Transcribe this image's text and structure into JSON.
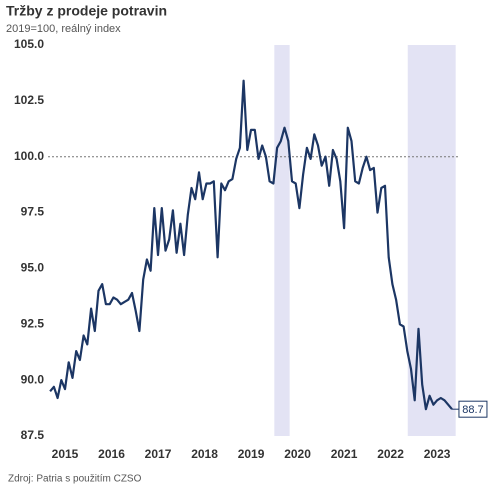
{
  "chart_data": {
    "type": "line",
    "title": "Tržby z prodeje potravin",
    "subtitle": "2019=100, reálný index",
    "source": "Zdroj: Patria s použitím CZSO",
    "x": [
      2015.18,
      2015.26,
      2015.34,
      2015.42,
      2015.5,
      2015.58,
      2015.66,
      2015.74,
      2015.82,
      2015.9,
      2015.98,
      2016.06,
      2016.14,
      2016.22,
      2016.3,
      2016.38,
      2016.46,
      2016.54,
      2016.62,
      2016.7,
      2016.78,
      2016.86,
      2016.94,
      2017.02,
      2017.1,
      2017.18,
      2017.26,
      2017.34,
      2017.42,
      2017.5,
      2017.58,
      2017.66,
      2017.74,
      2017.82,
      2017.9,
      2017.98,
      2018.06,
      2018.14,
      2018.22,
      2018.3,
      2018.38,
      2018.46,
      2018.54,
      2018.62,
      2018.7,
      2018.78,
      2018.86,
      2018.94,
      2019.02,
      2019.1,
      2019.18,
      2019.26,
      2019.34,
      2019.42,
      2019.5,
      2019.58,
      2019.66,
      2019.74,
      2019.82,
      2019.9,
      2019.98,
      2020.06,
      2020.14,
      2020.22,
      2020.3,
      2020.38,
      2020.46,
      2020.54,
      2020.62,
      2020.7,
      2020.78,
      2020.86,
      2020.94,
      2021.02,
      2021.1,
      2021.18,
      2021.26,
      2021.34,
      2021.42,
      2021.5,
      2021.58,
      2021.66,
      2021.74,
      2021.82,
      2021.9,
      2021.98,
      2022.06,
      2022.14,
      2022.22,
      2022.3,
      2022.38,
      2022.46,
      2022.54,
      2022.62,
      2022.7,
      2022.78,
      2022.86,
      2022.94,
      2023.02,
      2023.1,
      2023.18,
      2023.26,
      2023.34,
      2023.42,
      2023.5,
      2023.58,
      2023.66,
      2023.74,
      2023.82
    ],
    "series": [
      {
        "color": "#1c3664",
        "values": [
          89.5,
          89.7,
          89.2,
          90.0,
          89.6,
          90.8,
          90.1,
          91.3,
          90.9,
          92.0,
          91.6,
          93.2,
          92.2,
          94.0,
          94.3,
          93.4,
          93.4,
          93.7,
          93.6,
          93.4,
          93.5,
          93.6,
          93.9,
          93.1,
          92.2,
          94.5,
          95.4,
          94.9,
          97.7,
          95.6,
          97.7,
          95.8,
          96.3,
          97.6,
          95.7,
          97.0,
          95.6,
          97.4,
          98.6,
          98.1,
          99.3,
          98.1,
          98.8,
          98.8,
          98.9,
          95.5,
          98.8,
          98.5,
          98.9,
          99.0,
          99.9,
          100.4,
          103.4,
          100.3,
          101.2,
          101.2,
          99.9,
          100.5,
          100.0,
          98.9,
          98.8,
          100.4,
          100.7,
          101.3,
          100.7,
          98.9,
          98.8,
          97.7,
          99.2,
          100.4,
          99.9,
          101.0,
          100.5,
          99.6,
          100.0,
          98.7,
          100.3,
          99.9,
          98.9,
          96.8,
          101.3,
          100.7,
          98.9,
          98.8,
          99.5,
          100.0,
          99.4,
          99.5,
          97.5,
          98.6,
          98.7,
          95.5,
          94.3,
          93.6,
          92.5,
          92.4,
          91.3,
          90.5,
          89.1,
          92.3,
          89.8,
          88.7,
          89.3,
          88.9,
          89.1,
          89.2,
          89.1,
          88.9,
          88.7
        ]
      }
    ],
    "annotations": [
      {
        "text": "88.7"
      }
    ],
    "reference_line": 100,
    "shaded_ranges": [
      [
        2020.0,
        2020.33
      ],
      [
        2022.87,
        2023.9
      ]
    ],
    "shade_color": "#e3e3f4",
    "xlim": [
      2015.134,
      2023.95
    ],
    "xticks": [
      {
        "value": 2015.5,
        "label": "2015"
      },
      {
        "value": 2016.5,
        "label": "2016"
      },
      {
        "value": 2017.5,
        "label": "2017"
      },
      {
        "value": 2018.5,
        "label": "2018"
      },
      {
        "value": 2019.5,
        "label": "2019"
      },
      {
        "value": 2020.5,
        "label": "2020"
      },
      {
        "value": 2021.5,
        "label": "2021"
      },
      {
        "value": 2022.5,
        "label": "2022"
      },
      {
        "value": 2023.5,
        "label": "2023"
      }
    ],
    "ylim": [
      87.5,
      105
    ],
    "yticks": [
      87.5,
      {
        "value": 90,
        "label": "90.0"
      },
      92.5,
      {
        "value": 95,
        "label": "95.0"
      },
      97.5,
      {
        "value": 100,
        "label": "100.0"
      },
      102.5,
      {
        "value": 105,
        "label": "105.0"
      }
    ]
  }
}
